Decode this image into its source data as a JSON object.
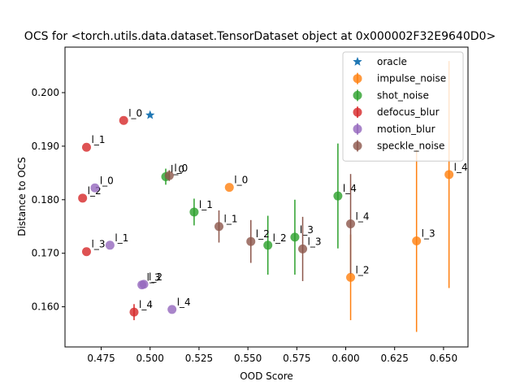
{
  "chart_data": {
    "type": "scatter",
    "title": "OCS for <torch.utils.data.dataset.TensorDataset object at 0x000002F32E9640D0>",
    "xlabel": "OOD Score",
    "ylabel": "Distance to OCS",
    "xlim": [
      0.4565,
      0.6625
    ],
    "ylim": [
      0.1525,
      0.2085
    ],
    "xticks": [
      "0.475",
      "0.500",
      "0.525",
      "0.550",
      "0.575",
      "0.600",
      "0.625",
      "0.650"
    ],
    "xtick_values": [
      0.475,
      0.5,
      0.525,
      0.55,
      0.575,
      0.6,
      0.625,
      0.65
    ],
    "yticks": [
      "0.160",
      "0.170",
      "0.180",
      "0.190",
      "0.200"
    ],
    "ytick_values": [
      0.16,
      0.17,
      0.18,
      0.19,
      0.2
    ],
    "grid": false,
    "legend_position": "top-right",
    "series": [
      {
        "name": "oracle",
        "color": "#1f77b4",
        "marker": "star",
        "points": [
          {
            "x": 0.5,
            "y": 0.1958,
            "err": 0,
            "label": ""
          }
        ]
      },
      {
        "name": "impulse_noise",
        "color": "#ff7f0e",
        "marker": "circle",
        "points": [
          {
            "x": 0.5405,
            "y": 0.1823,
            "err": 0,
            "label": "l_0"
          },
          {
            "x": 0.6025,
            "y": 0.1655,
            "err": 0.008,
            "label": "l_2"
          },
          {
            "x": 0.6362,
            "y": 0.1723,
            "err": 0.017,
            "label": "l_3"
          },
          {
            "x": 0.6528,
            "y": 0.1847,
            "err": 0.0212,
            "label": "l_4"
          }
        ]
      },
      {
        "name": "shot_noise",
        "color": "#2ca02c",
        "marker": "circle",
        "points": [
          {
            "x": 0.508,
            "y": 0.1843,
            "err": 0.0015,
            "label": "l_0"
          },
          {
            "x": 0.5225,
            "y": 0.1777,
            "err": 0.0025,
            "label": "l_1"
          },
          {
            "x": 0.5602,
            "y": 0.1715,
            "err": 0.0055,
            "label": "l_2"
          },
          {
            "x": 0.574,
            "y": 0.173,
            "err": 0.007,
            "label": "l_3"
          },
          {
            "x": 0.596,
            "y": 0.1807,
            "err": 0.0098,
            "label": "l_4"
          }
        ]
      },
      {
        "name": "defocus_blur",
        "color": "#d62728",
        "marker": "circle",
        "points": [
          {
            "x": 0.4865,
            "y": 0.1948,
            "err": 0,
            "label": "l_0"
          },
          {
            "x": 0.4675,
            "y": 0.1898,
            "err": 0,
            "label": "l_1"
          },
          {
            "x": 0.4655,
            "y": 0.1803,
            "err": 0,
            "label": "l_2"
          },
          {
            "x": 0.4675,
            "y": 0.1703,
            "err": 0,
            "label": "l_3"
          },
          {
            "x": 0.4918,
            "y": 0.159,
            "err": 0.0015,
            "label": "l_4"
          }
        ]
      },
      {
        "name": "motion_blur",
        "color": "#9467bd",
        "marker": "circle",
        "points": [
          {
            "x": 0.4718,
            "y": 0.1822,
            "err": 0,
            "label": "l_0"
          },
          {
            "x": 0.4795,
            "y": 0.1715,
            "err": 0,
            "label": "l_1"
          },
          {
            "x": 0.4968,
            "y": 0.1642,
            "err": 0,
            "label": "l_2"
          },
          {
            "x": 0.4958,
            "y": 0.1641,
            "err": 0,
            "label": "l_3"
          },
          {
            "x": 0.5112,
            "y": 0.1595,
            "err": 0,
            "label": "l_4"
          }
        ]
      },
      {
        "name": "speckle_noise",
        "color": "#8c564b",
        "marker": "circle",
        "points": [
          {
            "x": 0.5098,
            "y": 0.1845,
            "err": 0.001,
            "label": "l_0"
          },
          {
            "x": 0.5352,
            "y": 0.175,
            "err": 0.003,
            "label": "l_1"
          },
          {
            "x": 0.5515,
            "y": 0.1722,
            "err": 0.004,
            "label": "l_2"
          },
          {
            "x": 0.578,
            "y": 0.1708,
            "err": 0.006,
            "label": "l_3"
          },
          {
            "x": 0.6025,
            "y": 0.1755,
            "err": 0.0093,
            "label": "l_4"
          }
        ]
      }
    ]
  }
}
